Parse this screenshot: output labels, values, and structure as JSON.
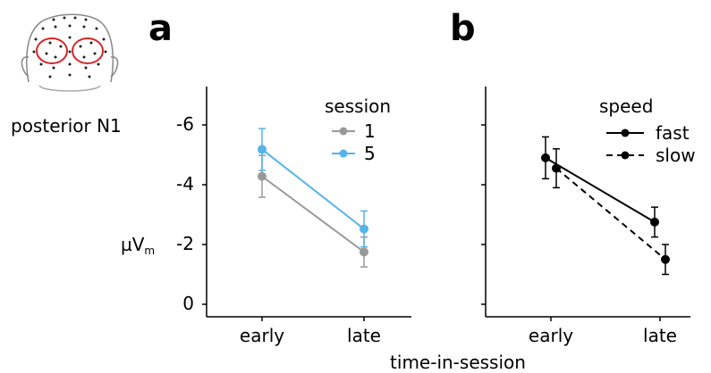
{
  "figure": {
    "row_label": "posterior N1",
    "y_unit_main": "µV",
    "y_unit_sub": "m",
    "x_label": "time-in-session"
  },
  "chart_data": [
    {
      "panel": "a",
      "type": "line",
      "x_categories": [
        "early",
        "late"
      ],
      "y_ticks": [
        "-6",
        "-4",
        "-2",
        "0"
      ],
      "y_tick_values": [
        -6,
        -4,
        -2,
        0
      ],
      "ylim": [
        0,
        -7.2
      ],
      "y_axis_inverted": true,
      "legend_title": "session",
      "legend_position": "top-right",
      "series": [
        {
          "name": "1",
          "color": "#999999",
          "line": "solid",
          "values": [
            -4.28,
            -1.75
          ],
          "err_low": [
            -3.58,
            -1.25
          ],
          "err_high": [
            -4.98,
            -2.25
          ]
        },
        {
          "name": "5",
          "color": "#56b4e9",
          "line": "solid",
          "values": [
            -5.18,
            -2.52
          ],
          "err_low": [
            -4.48,
            -1.92
          ],
          "err_high": [
            -5.88,
            -3.12
          ]
        }
      ]
    },
    {
      "panel": "b",
      "type": "line",
      "x_categories": [
        "early",
        "late"
      ],
      "y_tick_values": [
        -6,
        -4,
        -2,
        0
      ],
      "ylim": [
        0,
        -7.2
      ],
      "y_axis_inverted": true,
      "legend_title": "speed",
      "legend_position": "top-right",
      "series": [
        {
          "name": "fast",
          "color": "#000000",
          "line": "solid",
          "values": [
            -4.9,
            -2.75
          ],
          "err_low": [
            -4.2,
            -2.25
          ],
          "err_high": [
            -5.6,
            -3.25
          ]
        },
        {
          "name": "slow",
          "color": "#000000",
          "line": "dashed",
          "values": [
            -4.55,
            -1.5
          ],
          "err_low": [
            -3.9,
            -1.0
          ],
          "err_high": [
            -5.2,
            -2.0
          ]
        }
      ]
    }
  ]
}
